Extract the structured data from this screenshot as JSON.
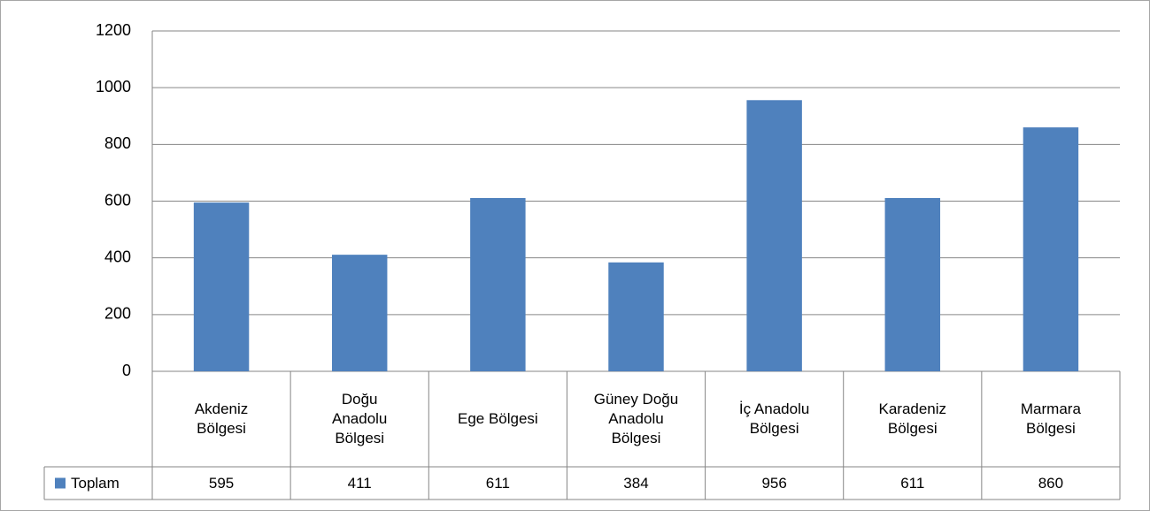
{
  "chart_data": {
    "type": "bar",
    "categories": [
      "Akdeniz Bölgesi",
      "Doğu Anadolu Bölgesi",
      "Ege Bölgesi",
      "Güney Doğu Anadolu Bölgesi",
      "İç Anadolu Bölgesi",
      "Karadeniz Bölgesi",
      "Marmara Bölgesi"
    ],
    "series": [
      {
        "name": "Toplam",
        "color": "#4f81bd",
        "values": [
          595,
          411,
          611,
          384,
          956,
          611,
          860
        ]
      }
    ],
    "ylim": [
      0,
      1200
    ],
    "yticks": [
      0,
      200,
      400,
      600,
      800,
      1000,
      1200
    ],
    "grid": true,
    "data_table": true
  }
}
